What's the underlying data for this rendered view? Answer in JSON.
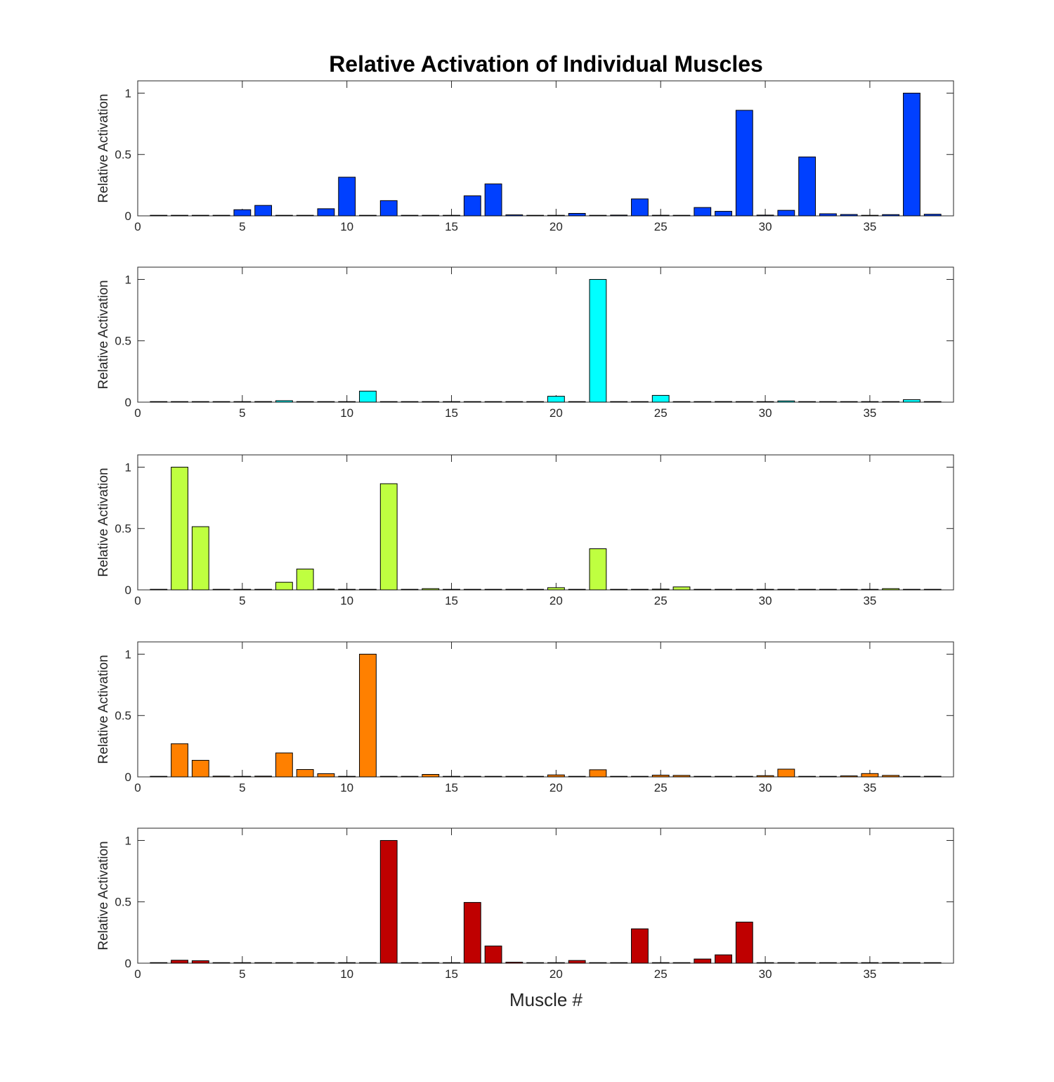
{
  "chart_data": {
    "type": "bar",
    "title": "Relative Activation of Individual Muscles",
    "xlabel": "Muscle #",
    "ylabel": "Relative Activation",
    "xlim": [
      0,
      39
    ],
    "ylim": [
      0,
      1.1
    ],
    "x_ticks": [
      0,
      5,
      10,
      15,
      20,
      25,
      30,
      35
    ],
    "y_ticks": [
      0,
      0.5,
      1
    ],
    "x_tick_labels": [
      "0",
      "5",
      "10",
      "15",
      "20",
      "25",
      "30",
      "35"
    ],
    "y_tick_labels": [
      "0",
      "0.5",
      "1"
    ],
    "categories": [
      1,
      2,
      3,
      4,
      5,
      6,
      7,
      8,
      9,
      10,
      11,
      12,
      13,
      14,
      15,
      16,
      17,
      18,
      19,
      20,
      21,
      22,
      23,
      24,
      25,
      26,
      27,
      28,
      29,
      30,
      31,
      32,
      33,
      34,
      35,
      36,
      37,
      38
    ],
    "panels": [
      {
        "color": "#0040FF",
        "values": [
          0.003,
          0.002,
          0.002,
          0.003,
          0.05,
          0.085,
          0.002,
          0.002,
          0.058,
          0.315,
          0.002,
          0.124,
          0.002,
          0.002,
          0.004,
          0.163,
          0.26,
          0.008,
          0.002,
          0.002,
          0.02,
          0.002,
          0.006,
          0.138,
          0.005,
          0.004,
          0.068,
          0.037,
          0.86,
          0.006,
          0.045,
          0.48,
          0.017,
          0.011,
          0.004,
          0.01,
          1.0,
          0.013
        ]
      },
      {
        "color": "#00FFFF",
        "values": [
          0.002,
          0.002,
          0.002,
          0.003,
          0.004,
          0.005,
          0.012,
          0.002,
          0.003,
          0.004,
          0.09,
          0.002,
          0.002,
          0.003,
          0.002,
          0.002,
          0.002,
          0.003,
          0.002,
          0.048,
          0.002,
          1.0,
          0.002,
          0.002,
          0.055,
          0.004,
          0.002,
          0.005,
          0.002,
          0.004,
          0.01,
          0.003,
          0.004,
          0.004,
          0.004,
          0.004,
          0.02,
          0.004
        ]
      },
      {
        "color": "#BFFF40",
        "values": [
          0.002,
          1.0,
          0.515,
          0.002,
          0.002,
          0.002,
          0.062,
          0.17,
          0.006,
          0.002,
          0.004,
          0.865,
          0.002,
          0.01,
          0.002,
          0.002,
          0.002,
          0.002,
          0.002,
          0.018,
          0.002,
          0.335,
          0.002,
          0.002,
          0.006,
          0.024,
          0.002,
          0.002,
          0.002,
          0.002,
          0.002,
          0.002,
          0.002,
          0.004,
          0.002,
          0.01,
          0.002,
          0.002
        ]
      },
      {
        "color": "#FF8000",
        "values": [
          0.002,
          0.27,
          0.135,
          0.006,
          0.002,
          0.006,
          0.195,
          0.06,
          0.026,
          0.002,
          1.0,
          0.002,
          0.002,
          0.02,
          0.002,
          0.002,
          0.002,
          0.002,
          0.002,
          0.016,
          0.002,
          0.058,
          0.002,
          0.002,
          0.014,
          0.012,
          0.002,
          0.002,
          0.002,
          0.01,
          0.063,
          0.002,
          0.002,
          0.008,
          0.027,
          0.012,
          0.002,
          0.005
        ]
      },
      {
        "color": "#BF0000",
        "values": [
          0.002,
          0.024,
          0.02,
          0.002,
          0.002,
          0.002,
          0.002,
          0.004,
          0.004,
          0.002,
          0.002,
          1.0,
          0.002,
          0.002,
          0.002,
          0.495,
          0.14,
          0.008,
          0.002,
          0.002,
          0.022,
          0.002,
          0.004,
          0.28,
          0.002,
          0.002,
          0.034,
          0.068,
          0.335,
          0.002,
          0.002,
          0.002,
          0.004,
          0.004,
          0.002,
          0.005,
          0.002,
          0.004
        ]
      }
    ]
  }
}
